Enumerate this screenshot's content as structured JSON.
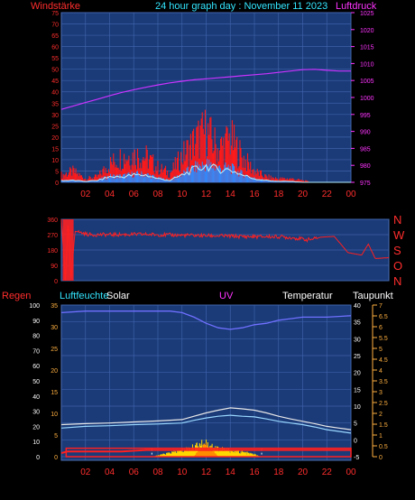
{
  "header": {
    "title": "24 hour graph day : November 11 2023"
  },
  "colors": {
    "plot_bg": "#1a3a78",
    "grid": "#3f62a8",
    "red_label": "#ff2d2d",
    "cyan_label": "#33e6ff",
    "magenta_label": "#ff33ff",
    "white_label": "#ffffff",
    "orange_label": "#ffb040",
    "pressure_line": "#cc33ff",
    "wind_bars": "#ff1a1a",
    "wind_avg": "#2f8bff",
    "wind_light": "#b6f4ff",
    "direction": "#ff2020",
    "humidity": "#7070ff",
    "temperature": "#e8e8e8",
    "dewpoint": "#9ad8ff",
    "solar": "#ffd700",
    "uv": "#ff8c00",
    "rain_box": "#ff2020"
  },
  "chart_data": [
    {
      "id": "wind",
      "type": "line",
      "labels": {
        "left": "Windstärke",
        "right": "Luftdruck"
      },
      "x_ticks": [
        "02",
        "04",
        "06",
        "08",
        "10",
        "12",
        "14",
        "16",
        "18",
        "20",
        "22",
        "00"
      ],
      "x_range_hours": [
        0,
        24
      ],
      "y_left": {
        "ticks": [
          0,
          5,
          10,
          15,
          20,
          25,
          30,
          35,
          40,
          45,
          50,
          55,
          60,
          65,
          70,
          75
        ],
        "range": [
          0,
          75
        ]
      },
      "y_right": {
        "ticks": [
          975,
          980,
          985,
          990,
          995,
          1000,
          1005,
          1010,
          1015,
          1020,
          1025
        ],
        "range": [
          975,
          1025
        ]
      },
      "series": [
        {
          "role": "pressure",
          "axis": "right",
          "x": [
            0,
            1,
            2,
            3,
            4,
            5,
            6,
            7,
            8,
            9,
            10,
            11,
            12,
            13,
            14,
            15,
            16,
            17,
            18,
            19,
            20,
            21,
            22,
            23,
            24
          ],
          "y": [
            996.5,
            997.5,
            998.5,
            999.5,
            1000.5,
            1001.5,
            1002.3,
            1003,
            1003.7,
            1004.3,
            1004.8,
            1005.2,
            1005.5,
            1005.8,
            1006.1,
            1006.4,
            1006.7,
            1007,
            1007.4,
            1007.8,
            1008.2,
            1008.3,
            1008,
            1007.8,
            1007.8
          ]
        },
        {
          "role": "gust",
          "axis": "left",
          "x": [
            0,
            1,
            2,
            3,
            4,
            5,
            6,
            7,
            8,
            9,
            10,
            11,
            12,
            13,
            14,
            15,
            16,
            17,
            18,
            19,
            20,
            21,
            22,
            23,
            24
          ],
          "y": [
            4,
            6,
            2,
            3,
            10,
            14,
            15,
            14,
            8,
            5,
            14,
            22,
            28,
            18,
            24,
            14,
            6,
            3,
            2,
            2,
            1,
            0,
            0,
            0,
            0
          ]
        },
        {
          "role": "wind_avg",
          "axis": "left",
          "x": [
            0,
            1,
            2,
            3,
            4,
            5,
            6,
            7,
            8,
            9,
            10,
            11,
            12,
            13,
            14,
            15,
            16,
            17,
            18,
            19,
            20,
            21,
            22,
            23,
            24
          ],
          "y": [
            1,
            1,
            0.5,
            1,
            3,
            3,
            4,
            4,
            2,
            1,
            4,
            7,
            9,
            7,
            7,
            4,
            2,
            1,
            0.5,
            0.5,
            0,
            0,
            0,
            0,
            0
          ]
        }
      ]
    },
    {
      "id": "direction",
      "type": "line",
      "labels": {
        "right": [
          "N",
          "W",
          "S",
          "O",
          "N"
        ]
      },
      "x_range_hours": [
        0,
        24
      ],
      "y_left": {
        "ticks": [
          0,
          90,
          180,
          270,
          360
        ],
        "range": [
          0,
          360
        ]
      },
      "series": [
        {
          "role": "direction",
          "x": [
            0,
            0.3,
            0.5,
            0.7,
            1,
            2,
            4,
            6,
            8,
            10,
            12,
            14,
            16,
            17,
            18,
            18.5,
            19,
            20,
            21,
            22,
            22.5,
            23,
            24
          ],
          "y": [
            360,
            0,
            360,
            0,
            290,
            270,
            270,
            272,
            268,
            265,
            262,
            258,
            258,
            252,
            240,
            245,
            255,
            260,
            165,
            150,
            215,
            130,
            135
          ]
        }
      ]
    },
    {
      "id": "climate",
      "type": "line",
      "labels": {
        "top": [
          "Regen",
          "Luftfeuchte",
          "Solar",
          "UV",
          "Temperatur",
          "Taupunkt"
        ]
      },
      "x_ticks": [
        "02",
        "04",
        "06",
        "08",
        "10",
        "12",
        "14",
        "16",
        "18",
        "20",
        "22",
        "00"
      ],
      "x_range_hours": [
        0,
        24
      ],
      "y_left_outer": {
        "ticks": [
          0,
          10,
          20,
          30,
          40,
          50,
          60,
          70,
          80,
          90,
          100
        ],
        "range": [
          0,
          100
        ]
      },
      "y_left_inner": {
        "ticks": [
          0,
          5,
          10,
          15,
          20,
          25,
          30,
          35
        ],
        "range": [
          0,
          35
        ]
      },
      "y_right_temp": {
        "ticks": [
          -5,
          0,
          5,
          10,
          15,
          20,
          25,
          30,
          35,
          40
        ],
        "range": [
          -5,
          40
        ]
      },
      "y_right_uv": {
        "ticks": [
          0,
          0.5,
          1,
          1.5,
          2,
          2.5,
          3,
          3.5,
          4,
          4.5,
          5,
          5.5,
          6,
          6.5,
          7
        ],
        "range": [
          0,
          7
        ]
      },
      "series": [
        {
          "role": "humidity",
          "axis": "y_left_outer",
          "x": [
            0,
            2,
            4,
            6,
            8,
            9,
            10,
            11,
            12,
            13,
            14,
            15,
            16,
            17,
            18,
            19,
            20,
            22,
            24
          ],
          "y": [
            95,
            96,
            96,
            96,
            96,
            96,
            95,
            92,
            88,
            85,
            84,
            85,
            87,
            88,
            90,
            91,
            92,
            92,
            93
          ]
        },
        {
          "role": "temperature",
          "axis": "y_right_temp",
          "x": [
            0,
            2,
            4,
            6,
            8,
            10,
            11,
            12,
            13,
            14,
            15,
            16,
            17,
            18,
            19,
            20,
            21,
            22,
            23,
            24
          ],
          "y": [
            4.5,
            4.8,
            5,
            5.3,
            5.6,
            6,
            7,
            8,
            8.8,
            9.5,
            9.2,
            8.8,
            8,
            7,
            6.2,
            5.5,
            4.8,
            4,
            3.5,
            3
          ]
        },
        {
          "role": "dewpoint",
          "axis": "y_right_temp",
          "x": [
            0,
            2,
            4,
            6,
            8,
            10,
            11,
            12,
            13,
            14,
            15,
            16,
            17,
            18,
            19,
            20,
            21,
            22,
            23,
            24
          ],
          "y": [
            3.5,
            4,
            4.2,
            4.5,
            4.7,
            5,
            5.8,
            6.5,
            7,
            7.3,
            7,
            6.8,
            6.2,
            5.5,
            5,
            4.5,
            3.8,
            3,
            2.5,
            2
          ]
        },
        {
          "role": "rain",
          "axis": "y_left_outer",
          "x": [
            0,
            0.5,
            1,
            5,
            7,
            24
          ],
          "y": [
            0,
            1,
            1,
            1,
            2,
            2
          ]
        },
        {
          "role": "solar",
          "axis": "y_left_inner",
          "x": [
            7.5,
            8,
            9,
            10,
            11,
            11.5,
            12,
            12.5,
            13,
            14,
            15,
            16,
            16.5
          ],
          "y": [
            0,
            0.3,
            1,
            1.6,
            2.5,
            3.2,
            3.4,
            2.8,
            2.2,
            1.6,
            1.2,
            0.6,
            0
          ]
        },
        {
          "role": "uv",
          "axis": "y_right_uv",
          "x": [
            11,
            11.5,
            12,
            12.5,
            13
          ],
          "y": [
            0,
            0.4,
            0.6,
            0.3,
            0
          ]
        }
      ]
    }
  ]
}
